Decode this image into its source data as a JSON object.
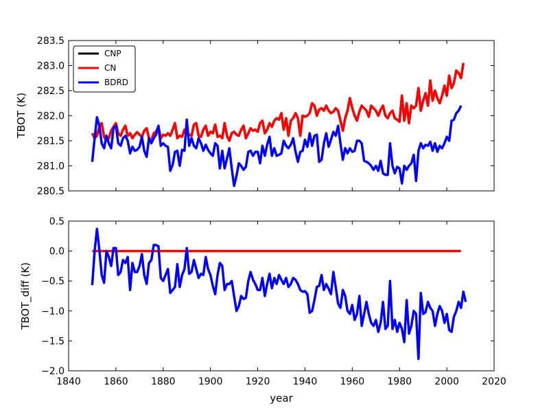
{
  "chart_data": [
    {
      "type": "line",
      "ylabel": "TBOT (K)",
      "xlabel": "",
      "xlim": [
        1840,
        2020
      ],
      "ylim": [
        280.5,
        283.5
      ],
      "xticks": [
        1840,
        1860,
        1880,
        1900,
        1920,
        1940,
        1960,
        1980,
        2000,
        2020
      ],
      "show_x_tick_labels": false,
      "yticks": [
        280.5,
        281.0,
        281.5,
        282.0,
        282.5,
        283.0,
        283.5
      ],
      "ytick_labels": [
        "280.5",
        "281.0",
        "281.5",
        "282.0",
        "282.5",
        "283.0",
        "283.5"
      ],
      "legend": {
        "position": "top-left",
        "entries": [
          {
            "name": "CNP",
            "color": "#000000"
          },
          {
            "name": "CN",
            "color": "#ff0000"
          },
          {
            "name": "BDRD",
            "color": "#0000ff"
          }
        ]
      },
      "series": [
        {
          "name": "CNP",
          "color": "#000000",
          "x_start": 1850,
          "values": [
            281.65,
            281.55,
            281.6,
            281.78,
            281.85,
            281.58,
            281.5,
            281.55,
            281.7,
            281.78,
            281.85,
            281.65,
            281.6,
            281.72,
            281.8,
            281.6,
            281.65,
            281.55,
            281.62,
            281.67,
            281.62,
            281.58,
            281.7,
            281.75,
            281.55,
            281.5,
            281.65,
            281.68,
            281.78,
            281.55,
            281.62,
            281.6,
            281.65,
            281.6,
            281.72,
            281.85,
            281.55,
            281.6,
            281.58,
            281.72,
            281.65,
            281.62,
            281.6,
            281.82,
            281.85,
            281.6,
            281.58,
            281.72,
            281.8,
            281.6,
            281.68,
            281.65,
            281.82,
            281.58,
            281.6,
            281.55,
            281.85,
            281.6,
            281.5,
            281.65,
            281.68,
            281.62,
            281.6,
            281.72,
            281.8,
            281.55,
            281.65,
            281.75,
            281.7,
            281.72,
            281.68,
            281.85,
            281.9,
            281.65,
            281.72,
            281.85,
            281.78,
            281.9,
            281.95,
            281.92,
            282.05,
            281.72,
            281.95,
            281.6,
            281.9,
            281.95,
            282.05,
            281.95,
            281.6,
            282.0,
            281.98,
            282.0,
            282.05,
            282.25,
            282.2,
            282.0,
            282.12,
            282.15,
            282.1,
            282.2,
            282.1,
            282.05,
            282.08,
            282.15,
            282.1,
            281.9,
            281.7,
            281.95,
            282.1,
            282.35,
            282.15,
            282.0,
            281.9,
            282.08,
            282.2,
            282.15,
            282.1,
            281.98,
            282.2,
            282.15,
            282.1,
            282.0,
            282.12,
            282.2,
            282.0,
            281.95,
            282.05,
            282.1,
            281.95,
            281.92,
            281.88,
            282.4,
            281.9,
            282.25,
            281.85,
            282.2,
            282.15,
            282.2,
            282.55,
            282.1,
            282.3,
            282.45,
            282.2,
            282.7,
            282.3,
            282.5,
            282.35,
            282.25,
            282.4,
            282.6,
            282.4,
            282.8,
            282.55,
            282.65,
            282.9,
            282.85,
            282.75,
            283.05
          ]
        },
        {
          "name": "CN",
          "color": "#ff0000",
          "x_start": 1850,
          "values": [
            281.65,
            281.55,
            281.6,
            281.78,
            281.85,
            281.58,
            281.5,
            281.55,
            281.7,
            281.78,
            281.85,
            281.65,
            281.6,
            281.72,
            281.8,
            281.6,
            281.65,
            281.55,
            281.62,
            281.67,
            281.62,
            281.58,
            281.7,
            281.75,
            281.55,
            281.5,
            281.65,
            281.68,
            281.78,
            281.55,
            281.62,
            281.6,
            281.65,
            281.6,
            281.72,
            281.85,
            281.55,
            281.6,
            281.58,
            281.72,
            281.65,
            281.62,
            281.6,
            281.82,
            281.85,
            281.6,
            281.58,
            281.72,
            281.8,
            281.6,
            281.68,
            281.65,
            281.82,
            281.58,
            281.6,
            281.55,
            281.85,
            281.6,
            281.5,
            281.65,
            281.68,
            281.62,
            281.6,
            281.72,
            281.8,
            281.55,
            281.65,
            281.75,
            281.7,
            281.72,
            281.68,
            281.85,
            281.9,
            281.65,
            281.72,
            281.85,
            281.78,
            281.9,
            281.95,
            281.92,
            282.05,
            281.72,
            281.95,
            281.6,
            281.9,
            281.95,
            282.05,
            281.95,
            281.6,
            282.0,
            281.98,
            282.0,
            282.05,
            282.25,
            282.2,
            282.0,
            282.12,
            282.15,
            282.1,
            282.2,
            282.1,
            282.05,
            282.08,
            282.15,
            282.1,
            281.9,
            281.7,
            281.95,
            282.1,
            282.35,
            282.15,
            282.0,
            281.9,
            282.08,
            282.2,
            282.15,
            282.1,
            281.98,
            282.2,
            282.15,
            282.1,
            282.0,
            282.12,
            282.2,
            282.0,
            281.95,
            282.05,
            282.1,
            281.95,
            281.92,
            281.88,
            282.4,
            281.9,
            282.25,
            281.85,
            282.2,
            282.15,
            282.2,
            282.55,
            282.1,
            282.3,
            282.45,
            282.2,
            282.7,
            282.3,
            282.5,
            282.35,
            282.25,
            282.4,
            282.6,
            282.4,
            282.8,
            282.55,
            282.65,
            282.9,
            282.85,
            282.75,
            283.05
          ]
        },
        {
          "name": "BDRD",
          "color": "#0000ff",
          "x_start": 1850,
          "values": [
            281.08,
            281.55,
            281.97,
            281.8,
            281.45,
            281.35,
            281.6,
            281.45,
            281.35,
            281.75,
            281.8,
            281.45,
            281.4,
            281.55,
            281.6,
            281.5,
            281.25,
            281.38,
            281.3,
            281.32,
            281.38,
            281.58,
            281.3,
            281.18,
            281.55,
            281.45,
            281.55,
            281.62,
            281.8,
            281.4,
            281.45,
            281.4,
            281.38,
            280.9,
            281.02,
            281.28,
            281.3,
            281.0,
            281.32,
            281.3,
            281.92,
            281.4,
            281.55,
            281.4,
            281.35,
            281.55,
            281.45,
            281.3,
            281.42,
            281.32,
            281.25,
            281.2,
            281.45,
            281.4,
            280.95,
            281.3,
            280.95,
            281.15,
            281.35,
            280.95,
            280.6,
            280.8,
            281.05,
            281.0,
            280.92,
            280.98,
            281.28,
            281.3,
            281.2,
            281.28,
            281.28,
            281.05,
            281.4,
            281.2,
            281.42,
            281.58,
            281.2,
            281.35,
            281.2,
            281.22,
            281.25,
            281.5,
            281.4,
            281.35,
            281.42,
            281.55,
            281.28,
            281.08,
            281.28,
            281.3,
            281.52,
            281.38,
            281.65,
            281.4,
            281.6,
            281.62,
            281.08,
            281.12,
            281.45,
            281.65,
            281.38,
            281.52,
            281.68,
            281.6,
            281.8,
            281.45,
            281.12,
            281.35,
            281.25,
            281.35,
            281.28,
            281.3,
            281.5,
            281.5,
            281.45,
            281.1,
            281.08,
            281.05,
            281.0,
            280.92,
            281.0,
            280.9,
            281.1,
            280.85,
            280.82,
            280.82,
            281.45,
            281.0,
            280.85,
            280.98,
            280.95,
            280.65,
            281.0,
            280.92,
            281.0,
            281.05,
            281.22,
            280.7,
            281.3,
            281.45,
            281.35,
            281.42,
            281.4,
            281.48,
            281.3,
            281.45,
            281.28,
            281.4,
            281.35,
            281.45,
            281.58,
            281.5,
            281.9,
            281.92,
            282.05,
            282.1,
            282.2
          ]
        }
      ]
    },
    {
      "type": "line",
      "ylabel": "TBOT_diff (K)",
      "xlabel": "year",
      "xlim": [
        1840,
        2020
      ],
      "ylim": [
        -2.0,
        0.5
      ],
      "xticks": [
        1840,
        1860,
        1880,
        1900,
        1920,
        1940,
        1960,
        1980,
        2000,
        2020
      ],
      "xtick_labels": [
        "1840",
        "1860",
        "1880",
        "1900",
        "1920",
        "1940",
        "1960",
        "1980",
        "2000",
        "2020"
      ],
      "show_x_tick_labels": true,
      "yticks": [
        -2.0,
        -1.5,
        -1.0,
        -0.5,
        0.0,
        0.5
      ],
      "ytick_labels": [
        "−2.0",
        "−1.5",
        "−1.0",
        "−0.5",
        "0.0",
        "0.5"
      ],
      "series": [
        {
          "name": "CN",
          "color": "#ff0000",
          "x": [
            1850,
            2006
          ],
          "values": [
            0.0,
            0.0
          ]
        },
        {
          "name": "BDRD",
          "color": "#0000ff",
          "x_start": 1850,
          "values": [
            -0.57,
            0.0,
            0.37,
            0.02,
            -0.4,
            -0.53,
            0.0,
            -0.1,
            -0.25,
            0.05,
            0.05,
            -0.4,
            -0.35,
            -0.15,
            -0.2,
            -0.1,
            -0.65,
            -0.2,
            -0.35,
            -0.35,
            -0.25,
            -0.05,
            -0.4,
            -0.55,
            -0.2,
            -0.15,
            0.1,
            0.1,
            0.08,
            -0.45,
            -0.5,
            -0.4,
            -0.3,
            -0.7,
            -0.65,
            -0.6,
            -0.22,
            -0.6,
            -0.4,
            -0.3,
            0.05,
            -0.38,
            -0.35,
            -0.15,
            -0.3,
            -0.45,
            -0.38,
            -0.4,
            -0.1,
            -0.3,
            -0.4,
            -0.58,
            -0.72,
            -0.4,
            -0.2,
            -0.25,
            -0.65,
            -0.55,
            -0.55,
            -0.5,
            -0.75,
            -1.0,
            -0.92,
            -0.75,
            -0.8,
            -0.78,
            -0.5,
            -0.35,
            -0.48,
            -0.55,
            -0.65,
            -0.65,
            -0.45,
            -0.75,
            -0.55,
            -0.38,
            -0.62,
            -0.45,
            -0.55,
            -0.4,
            -0.48,
            -0.55,
            -0.45,
            -0.6,
            -0.55,
            -0.45,
            -0.48,
            -0.55,
            -0.65,
            -0.68,
            -0.67,
            -0.72,
            -1.03,
            -1.0,
            -0.82,
            -0.6,
            -0.58,
            -0.4,
            -0.65,
            -0.55,
            -0.63,
            -0.72,
            -0.35,
            -0.6,
            -0.88,
            -0.95,
            -0.65,
            -0.75,
            -1.0,
            -1.05,
            -0.9,
            -1.15,
            -1.05,
            -0.75,
            -1.25,
            -1.05,
            -0.85,
            -1.05,
            -1.2,
            -1.25,
            -1.15,
            -1.35,
            -1.2,
            -0.85,
            -1.3,
            -1.25,
            -0.5,
            -1.3,
            -1.15,
            -1.35,
            -1.2,
            -1.3,
            -1.52,
            -0.82,
            -1.38,
            -1.25,
            -1.0,
            -1.05,
            -1.8,
            -0.7,
            -1.05,
            -1.02,
            -0.85,
            -0.95,
            -1.0,
            -1.25,
            -1.05,
            -0.92,
            -1.0,
            -1.2,
            -1.05,
            -1.32,
            -1.35,
            -1.1,
            -1.0,
            -0.85,
            -0.95,
            -0.68,
            -0.85
          ]
        }
      ]
    }
  ]
}
